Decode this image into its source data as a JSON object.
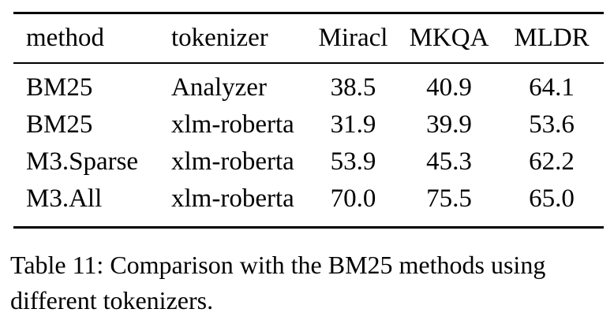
{
  "table": {
    "columns": {
      "method": "method",
      "tokenizer": "tokenizer",
      "miracl": "Miracl",
      "mkqa": "MKQA",
      "mldr": "MLDR"
    },
    "rows": [
      [
        "BM25",
        "Analyzer",
        "38.5",
        "40.9",
        "64.1"
      ],
      [
        "BM25",
        "xlm-roberta",
        "31.9",
        "39.9",
        "53.6"
      ],
      [
        "M3.Sparse",
        "xlm-roberta",
        "53.9",
        "45.3",
        "62.2"
      ],
      [
        "M3.All",
        "xlm-roberta",
        "70.0",
        "75.5",
        "65.0"
      ]
    ]
  },
  "caption": "Table 11: Comparison with the BM25 methods using different tokenizers."
}
